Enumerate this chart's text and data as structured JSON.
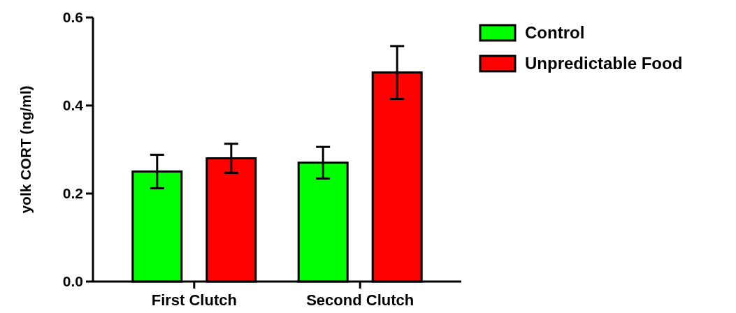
{
  "chart_data": {
    "type": "bar",
    "ylabel": "yolk CORT (ng/ml)",
    "categories": [
      "First Clutch",
      "Second Clutch"
    ],
    "series": [
      {
        "name": "Control",
        "color": "#00ff00",
        "values": [
          0.25,
          0.27
        ],
        "errors": [
          0.038,
          0.036
        ]
      },
      {
        "name": "Unpredictable Food",
        "color": "#ff0000",
        "values": [
          0.28,
          0.475
        ],
        "errors": [
          0.033,
          0.06
        ]
      }
    ],
    "ylim": [
      0,
      0.6
    ],
    "yticks": [
      {
        "value": 0,
        "label": "0.0"
      },
      {
        "value": 0.2,
        "label": "0.2"
      },
      {
        "value": 0.4,
        "label": "0.4"
      },
      {
        "value": 0.6,
        "label": "0.6"
      }
    ],
    "legend": "top right"
  }
}
